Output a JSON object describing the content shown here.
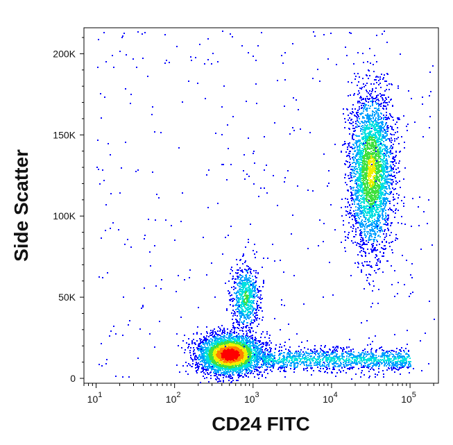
{
  "chart_data": {
    "type": "scatter",
    "subtype": "flow-cytometry-density-dot-plot",
    "title": "",
    "xlabel": "CD24 FITC",
    "ylabel": "Side Scatter",
    "x_scale": "log",
    "xlim": [
      7,
      230000
    ],
    "ylim": [
      -3000,
      216000
    ],
    "grid": false,
    "legend": "none",
    "x_ticks": [
      {
        "value": 10,
        "base": "10",
        "exp": "1"
      },
      {
        "value": 100,
        "base": "10",
        "exp": "2"
      },
      {
        "value": 1000,
        "base": "10",
        "exp": "3"
      },
      {
        "value": 10000,
        "base": "10",
        "exp": "4"
      },
      {
        "value": 100000,
        "base": "10",
        "exp": "5"
      }
    ],
    "y_ticks": [
      {
        "value": 0,
        "label": "0"
      },
      {
        "value": 50000,
        "label": "50K"
      },
      {
        "value": 100000,
        "label": "100K"
      },
      {
        "value": 150000,
        "label": "150K"
      },
      {
        "value": 200000,
        "label": "200K"
      }
    ],
    "density_colormap": [
      "#0000ff",
      "#00a0ff",
      "#00e0e0",
      "#40e040",
      "#f0f000",
      "#ff8000",
      "#ff0000"
    ],
    "populations": [
      {
        "name": "CD24 intermediate, low SSC (high density)",
        "x_log10_center": 2.7,
        "x_log10_sd": 0.2,
        "y_center": 15000,
        "y_sd": 6000,
        "events": 3800,
        "peak_density": 1.0
      },
      {
        "name": "CD24 low-mid, mid SSC",
        "x_log10_center": 2.9,
        "x_log10_sd": 0.09,
        "y_center": 50000,
        "y_sd": 10000,
        "events": 700,
        "peak_density": 0.45
      },
      {
        "name": "CD24 high, high SSC",
        "x_log10_center": 4.5,
        "x_log10_sd": 0.14,
        "y_center": 128000,
        "y_sd": 24000,
        "events": 3200,
        "peak_density": 0.6
      },
      {
        "name": "CD24 positive, low SSC tail",
        "x_log10_range": [
          3.1,
          5.0
        ],
        "y_center": 12000,
        "y_sd": 3500,
        "events": 1300,
        "peak_density": 0.3
      },
      {
        "name": "scattered events",
        "x_log10_range": [
          1.0,
          5.3
        ],
        "y_range": [
          0,
          215000
        ],
        "events": 420,
        "peak_density": 0.05
      }
    ]
  }
}
